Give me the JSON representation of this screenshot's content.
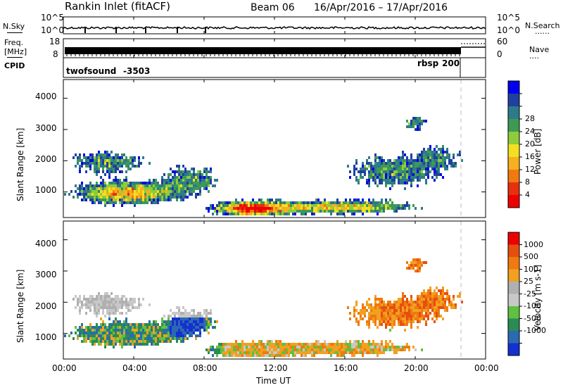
{
  "header": {
    "station": "Rankin Inlet (fitACF)",
    "beam": "Beam 06",
    "dates": "16/Apr/2016 – 17/Apr/2016"
  },
  "side_labels": {
    "nsky": "N.Sky",
    "freq_line1": "Freq.",
    "freq_line2": "[MHz]",
    "cpid": "CPID",
    "nsearch": "N.Search",
    "nave": "Nave",
    "dots": "......",
    "dots_short": "...."
  },
  "cpid": {
    "left_name": "twofsound",
    "left_code": "-3503",
    "right_name": "rbsp",
    "right_code": "200"
  },
  "time_axis": {
    "label": "Time UT",
    "ticks": [
      "00:00",
      "04:00",
      "08:00",
      "12:00",
      "16:00",
      "20:00",
      "00:00"
    ]
  },
  "colors": {
    "power_scale": [
      "#0000ee",
      "#2040a0",
      "#2e7a8a",
      "#3d9a55",
      "#8dcc3a",
      "#f4e020",
      "#f7b020",
      "#f07a10",
      "#e63010",
      "#ee0000"
    ],
    "velocity_scale": [
      "#1530d0",
      "#2a6ab0",
      "#2c8a55",
      "#60c040",
      "#c8c8c8",
      "#b0b0b0",
      "#f2a020",
      "#ee7a10",
      "#e84d10",
      "#ee0000"
    ]
  },
  "chart_data": [
    {
      "type": "line",
      "title": "N.Sky / N.Search",
      "ylabel_left": "N.Sky",
      "ylabel_right": "N.Search",
      "yticks_left": [
        "10^5",
        "10^0"
      ],
      "yticks_right": [
        "10^5",
        "10^0"
      ],
      "x_range": [
        "00:00",
        "00:00"
      ],
      "description_series": "Noise sky level shown as a near-constant trace with short dips"
    },
    {
      "type": "line",
      "title": "Freq. / Nave",
      "ylabel_left": "Freq. [MHz]",
      "ylabel_right": "Nave",
      "yticks_left": [
        "18",
        "8"
      ],
      "yticks_right": [
        "60",
        "0"
      ],
      "x_range": [
        "00:00",
        "00:00"
      ]
    },
    {
      "type": "heatmap",
      "title": "Power",
      "xlabel": "",
      "ylabel": "Slant Range [km]",
      "yticks": [
        "1000",
        "2000",
        "3000",
        "4000"
      ],
      "ylim": [
        180,
        4600
      ],
      "xticks": [
        "00:00",
        "04:00",
        "08:00",
        "12:00",
        "16:00",
        "20:00",
        "00:00"
      ],
      "colorbar": {
        "label": "Power [dB]",
        "ticks": [
          "4",
          "8",
          "12",
          "16",
          "20",
          "24",
          "28"
        ]
      }
    },
    {
      "type": "heatmap",
      "title": "Velocity",
      "xlabel": "Time UT",
      "ylabel": "Slant Range [km]",
      "yticks": [
        "1000",
        "2000",
        "3000",
        "4000"
      ],
      "ylim": [
        180,
        4600
      ],
      "xticks": [
        "00:00",
        "04:00",
        "08:00",
        "12:00",
        "16:00",
        "20:00",
        "00:00"
      ],
      "colorbar": {
        "label": "Velocity [m s-1]",
        "ticks": [
          "1000",
          "500",
          "100",
          "25",
          "-25",
          "-100",
          "-500",
          "-1000"
        ]
      }
    }
  ]
}
